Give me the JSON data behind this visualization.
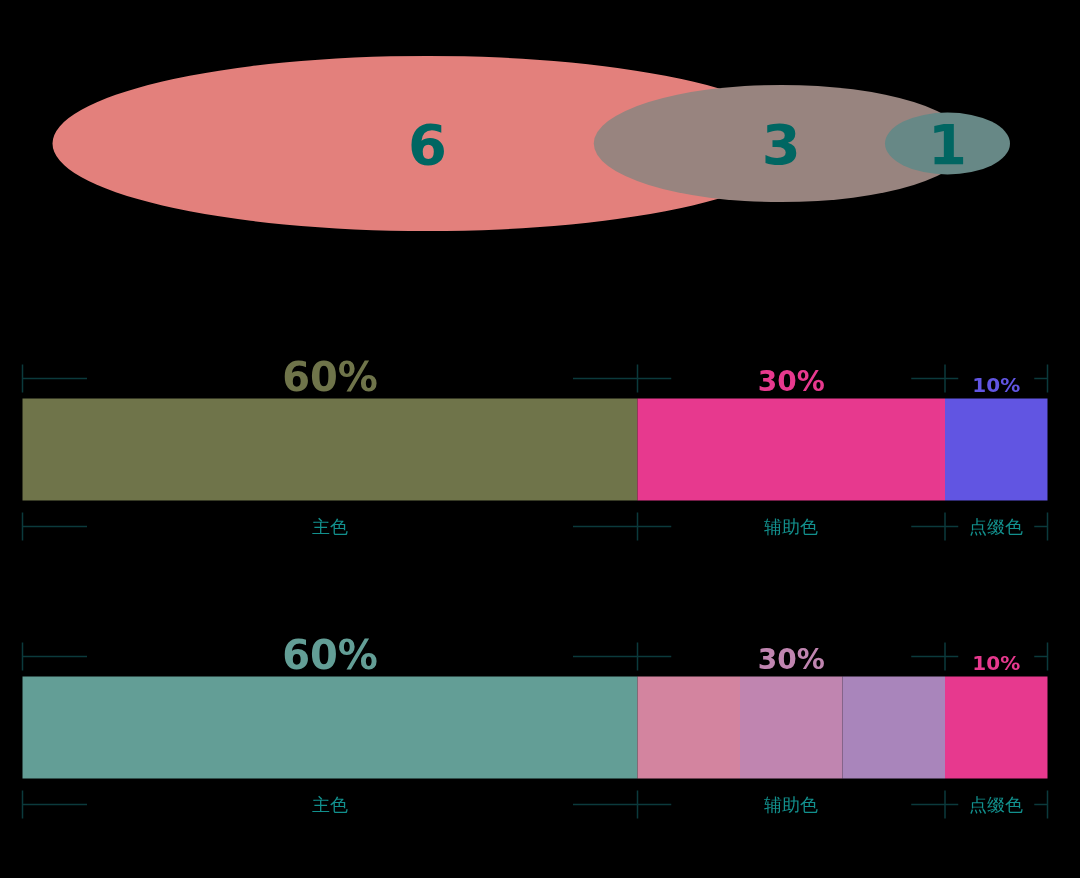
{
  "chart_data": [
    {
      "type": "other",
      "values": [
        6,
        3,
        1
      ],
      "colors": [
        "#e3807c",
        "#98847f",
        "#678886"
      ],
      "data_labels": true
    },
    {
      "type": "bar",
      "orientation": "horizontal",
      "stacked": true,
      "categories": [
        null
      ],
      "series": [
        {
          "name": "主色",
          "color": "#6f744a",
          "values": [
            60
          ],
          "value_labels": [
            "60%"
          ]
        },
        {
          "name": "辅助色",
          "color": "#e7398e",
          "values": [
            30
          ],
          "value_labels": [
            "30%"
          ]
        },
        {
          "name": "点缀色",
          "color": "#6155e2",
          "values": [
            10
          ],
          "value_labels": [
            "10%"
          ]
        }
      ]
    },
    {
      "type": "bar",
      "orientation": "horizontal",
      "stacked": true,
      "categories": [
        null
      ],
      "series": [
        {
          "name": "主色",
          "color": "#639e96",
          "values": [
            60
          ],
          "value_labels": [
            "60%"
          ]
        },
        {
          "color": "#d3849f",
          "values": [
            10
          ]
        },
        {
          "name": "辅助色",
          "color": "#c085b0",
          "values": [
            10
          ]
        },
        {
          "color": "#a985bb",
          "values": [
            10
          ]
        },
        {
          "name": "点缀色",
          "color": "#e7398e",
          "values": [
            10
          ],
          "value_labels": [
            "10%"
          ]
        }
      ],
      "annotations": [
        "30%"
      ]
    }
  ]
}
